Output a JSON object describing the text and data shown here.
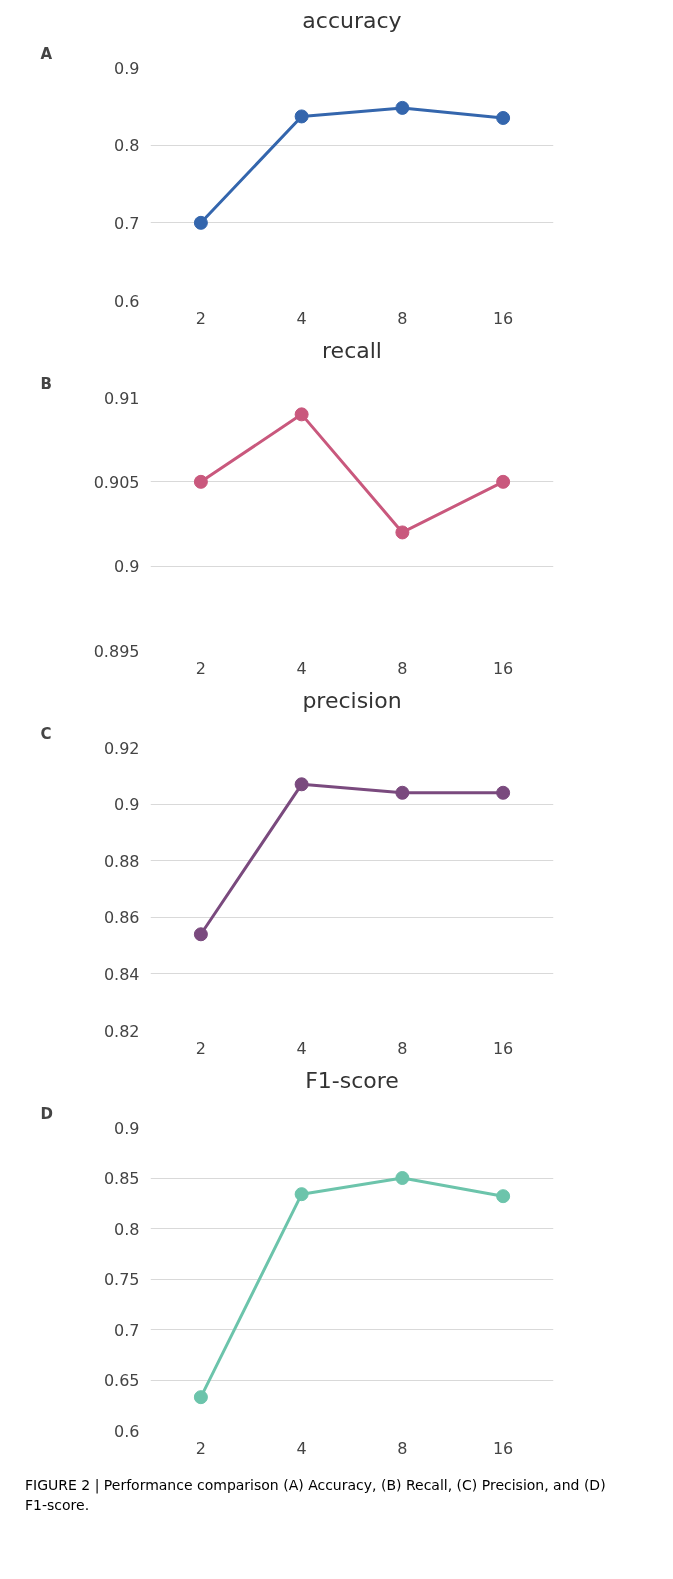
{
  "chart_data": [
    {
      "type": "line",
      "title": "accuracy",
      "annotations": [
        "A"
      ],
      "categories": [
        "2",
        "4",
        "8",
        "16"
      ],
      "series": [
        {
          "color": "#3466ad",
          "values": [
            0.7,
            0.837,
            0.848,
            0.835
          ]
        }
      ],
      "ylim": [
        0.6,
        0.9
      ],
      "yticks": [
        {
          "value": 0.6,
          "label": "0.6"
        },
        {
          "value": 0.7,
          "label": "0.7"
        },
        {
          "value": 0.8,
          "label": "0.8"
        },
        {
          "value": 0.9,
          "label": "0.9"
        }
      ],
      "grid": "y",
      "marker": "circle",
      "line_style": "solid"
    },
    {
      "type": "line",
      "title": "recall",
      "annotations": [
        "B"
      ],
      "categories": [
        "2",
        "4",
        "8",
        "16"
      ],
      "series": [
        {
          "color": "#c9587d",
          "values": [
            0.905,
            0.909,
            0.902,
            0.905
          ]
        }
      ],
      "ylim": [
        0.895,
        0.91
      ],
      "yticks": [
        0.895,
        0.9,
        0.905,
        0.91
      ],
      "grid": "y",
      "marker": "circle",
      "line_style": "solid"
    },
    {
      "type": "line",
      "title": "precision",
      "annotations": [
        "C"
      ],
      "categories": [
        "2",
        "4",
        "8",
        "16"
      ],
      "series": [
        {
          "color": "#7a4a7e",
          "values": [
            0.854,
            0.907,
            0.904,
            0.904
          ]
        }
      ],
      "ylim": [
        0.82,
        0.92
      ],
      "yticks": [
        0.82,
        0.84,
        0.86,
        0.88,
        0.9,
        0.92
      ],
      "grid": "y",
      "marker": "circle",
      "line_style": "solid"
    },
    {
      "type": "line",
      "title": "F1-score",
      "annotations": [
        "D",
        "FIGURE 2 | Performance comparison (A) Accuracy, (B) Recall, (C) Precision, and (D) F1-score."
      ],
      "categories": [
        "2",
        "4",
        "8",
        "16"
      ],
      "series": [
        {
          "color": "#6cc4ab",
          "values": [
            0.633,
            0.834,
            0.85,
            0.832
          ]
        }
      ],
      "ylim": [
        0.6,
        0.9
      ],
      "yticks": [
        0.6,
        0.65,
        0.7,
        0.75,
        0.8,
        0.85,
        0.9
      ],
      "grid": "y",
      "marker": "circle",
      "line_style": "solid"
    }
  ]
}
